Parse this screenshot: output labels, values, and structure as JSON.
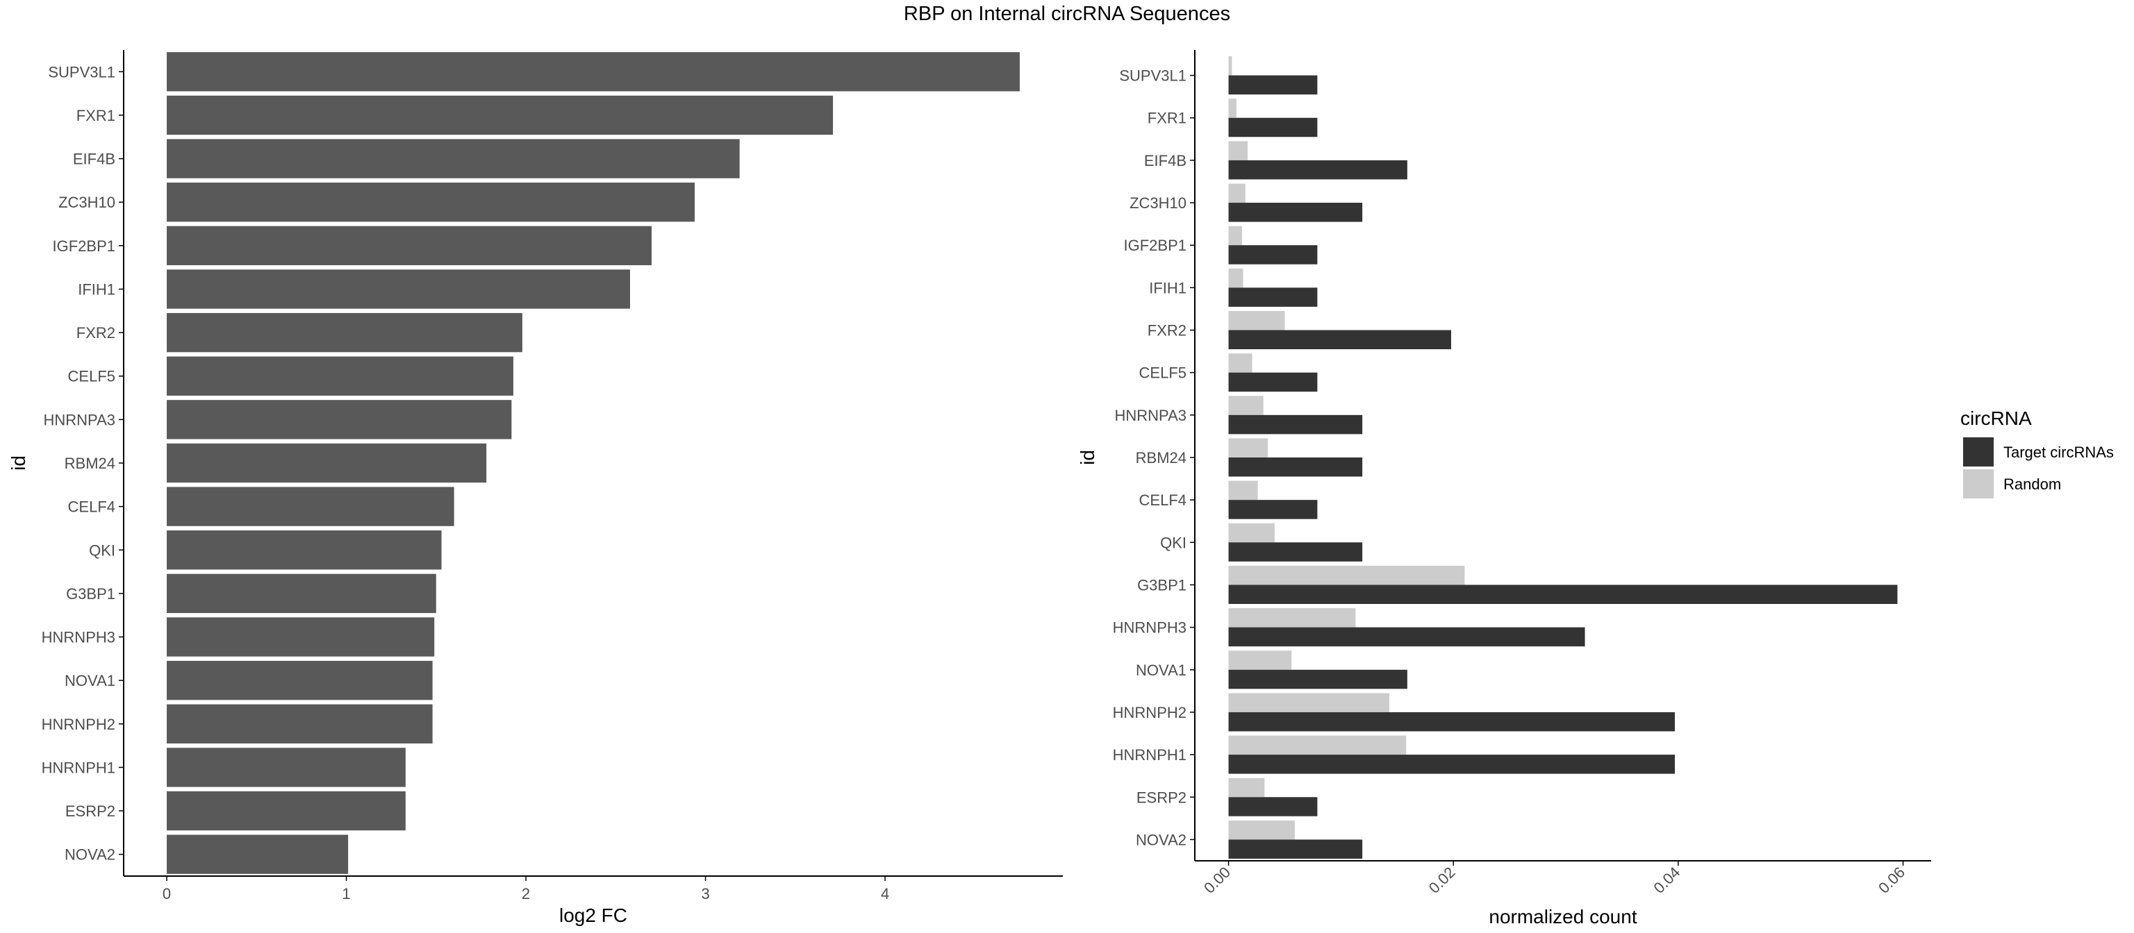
{
  "title": "RBP on Internal circRNA Sequences",
  "colors": {
    "left_bar": "#595959",
    "target": "#333333",
    "random": "#cccccc",
    "axis": "#000000",
    "tick_text": "#4d4d4d"
  },
  "chart_data": [
    {
      "type": "bar",
      "orientation": "horizontal",
      "categories": [
        "SUPV3L1",
        "FXR1",
        "EIF4B",
        "ZC3H10",
        "IGF2BP1",
        "IFIH1",
        "FXR2",
        "CELF5",
        "HNRNPA3",
        "RBM24",
        "CELF4",
        "QKI",
        "G3BP1",
        "HNRNPH3",
        "NOVA1",
        "HNRNPH2",
        "HNRNPH1",
        "ESRP2",
        "NOVA2"
      ],
      "values": [
        4.75,
        3.71,
        3.19,
        2.94,
        2.7,
        2.58,
        1.98,
        1.93,
        1.92,
        1.78,
        1.6,
        1.53,
        1.5,
        1.49,
        1.48,
        1.48,
        1.33,
        1.33,
        1.01
      ],
      "xlabel": "log2 FC",
      "ylabel": "id",
      "xticks": [
        "0",
        "1",
        "2",
        "3",
        "4"
      ],
      "xlim": [
        -0.24,
        4.99
      ],
      "grid": false
    },
    {
      "type": "bar",
      "orientation": "horizontal",
      "categories": [
        "SUPV3L1",
        "FXR1",
        "EIF4B",
        "ZC3H10",
        "IGF2BP1",
        "IFIH1",
        "FXR2",
        "CELF5",
        "HNRNPA3",
        "RBM24",
        "CELF4",
        "QKI",
        "G3BP1",
        "HNRNPH3",
        "NOVA1",
        "HNRNPH2",
        "HNRNPH1",
        "ESRP2",
        "NOVA2"
      ],
      "series": [
        {
          "name": "Random",
          "values": [
            0.0003,
            0.0007,
            0.0017,
            0.0015,
            0.0012,
            0.0013,
            0.005,
            0.0021,
            0.0031,
            0.0035,
            0.0026,
            0.0041,
            0.021,
            0.0113,
            0.0056,
            0.0143,
            0.0158,
            0.0032,
            0.0059
          ]
        },
        {
          "name": "Target circRNAs",
          "values": [
            0.0079,
            0.0079,
            0.0159,
            0.0119,
            0.0079,
            0.0079,
            0.0198,
            0.0079,
            0.0119,
            0.0119,
            0.0079,
            0.0119,
            0.0595,
            0.0317,
            0.0159,
            0.0397,
            0.0397,
            0.0079,
            0.0119
          ]
        }
      ],
      "xlabel": "normalized count",
      "ylabel": "id",
      "xticks": [
        "0.00",
        "0.02",
        "0.04",
        "0.06"
      ],
      "xlim": [
        -0.003,
        0.0625
      ],
      "legend": {
        "title": "circRNA",
        "entries": [
          "Target circRNAs",
          "Random"
        ],
        "placement": "right"
      },
      "grid": false
    }
  ]
}
